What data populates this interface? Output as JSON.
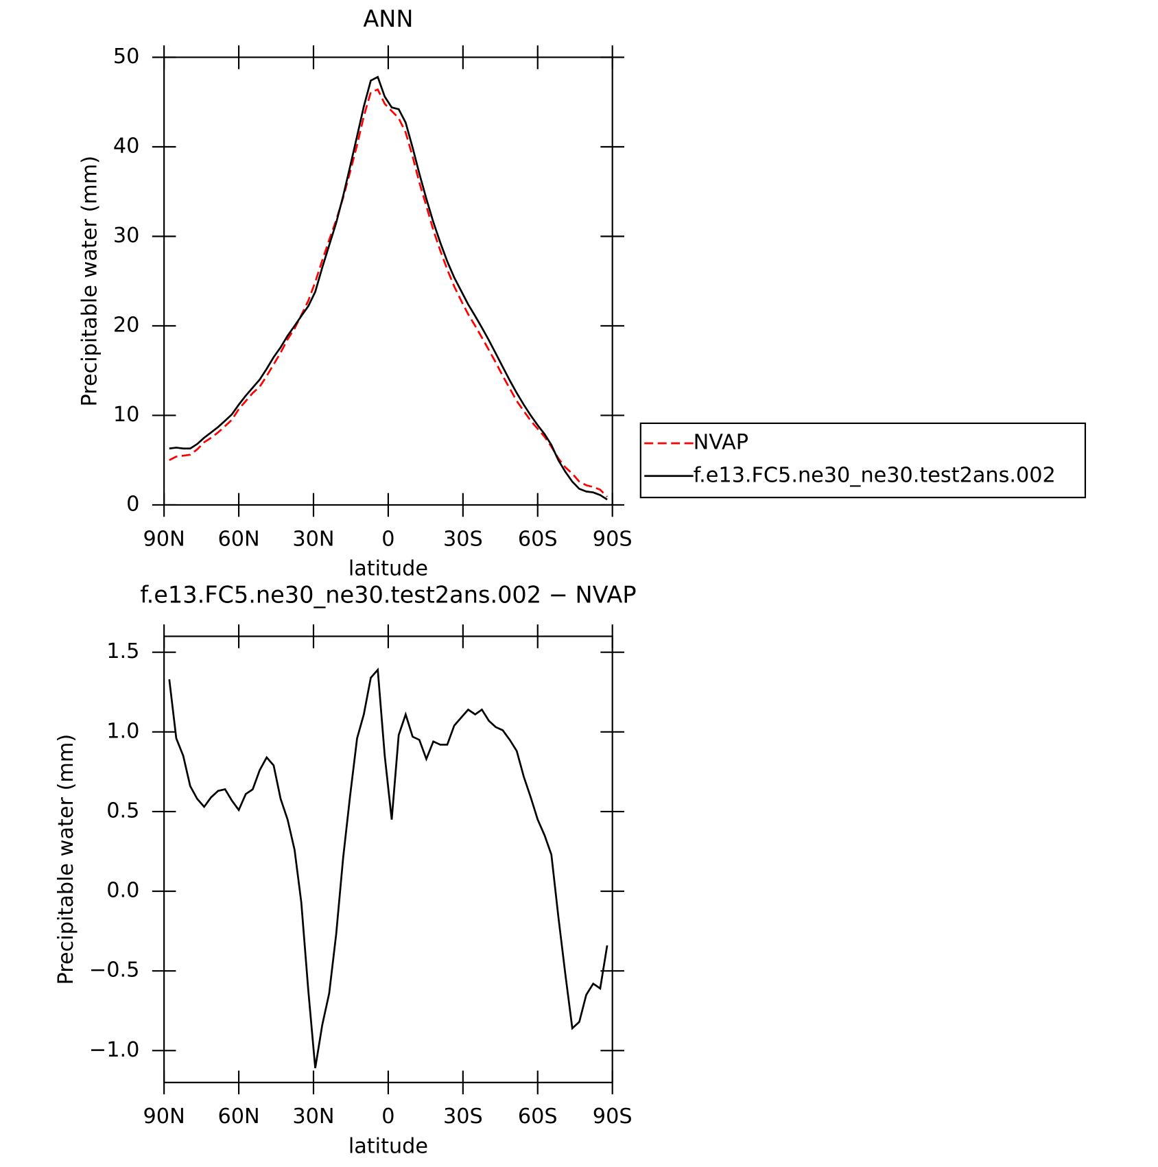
{
  "chart_data": [
    {
      "type": "line",
      "title": "ANN",
      "xlabel": "latitude",
      "ylabel": "Precipitable water (mm)",
      "x": [
        87.9,
        85.1,
        82.3,
        79.5,
        76.7,
        73.9,
        71.1,
        68.3,
        65.5,
        62.8,
        60.0,
        57.2,
        54.4,
        51.6,
        48.8,
        46.0,
        43.2,
        40.4,
        37.6,
        34.9,
        32.1,
        29.3,
        26.5,
        23.7,
        20.9,
        18.1,
        15.3,
        12.5,
        9.8,
        7.0,
        4.2,
        1.4,
        -1.4,
        -4.2,
        -7.0,
        -9.8,
        -12.5,
        -15.3,
        -18.1,
        -20.9,
        -23.7,
        -26.5,
        -29.3,
        -32.1,
        -34.9,
        -37.6,
        -40.4,
        -43.2,
        -46.0,
        -48.8,
        -51.6,
        -54.4,
        -57.2,
        -60.0,
        -62.8,
        -65.5,
        -68.3,
        -71.1,
        -73.9,
        -76.7,
        -79.5,
        -82.3,
        -85.1,
        -87.9
      ],
      "series": [
        {
          "name": "NVAP",
          "color": "#ff0000",
          "dashed": true,
          "values": [
            5.0,
            5.4,
            5.5,
            5.6,
            6.2,
            7.0,
            7.5,
            8.1,
            8.8,
            9.5,
            10.7,
            11.6,
            12.5,
            13.2,
            14.4,
            15.7,
            17.0,
            18.5,
            19.7,
            21.2,
            22.8,
            24.9,
            27.3,
            29.6,
            31.8,
            34.3,
            37.2,
            40.2,
            43.4,
            46.1,
            46.4,
            44.8,
            44.0,
            43.2,
            41.6,
            38.9,
            36.0,
            33.4,
            30.7,
            28.4,
            26.3,
            24.4,
            22.8,
            21.3,
            20.0,
            18.7,
            17.3,
            15.9,
            14.4,
            13.0,
            11.6,
            10.5,
            9.4,
            8.5,
            7.6,
            6.5,
            5.2,
            4.2,
            3.5,
            2.6,
            2.2,
            2.0,
            1.7,
            0.9
          ]
        },
        {
          "name": "f.e13.FC5.ne30_ne30.test2ans.002",
          "color": "#000000",
          "dashed": false,
          "values": [
            6.3,
            6.4,
            6.3,
            6.3,
            6.8,
            7.5,
            8.1,
            8.7,
            9.4,
            10.1,
            11.2,
            12.2,
            13.1,
            14.0,
            15.2,
            16.5,
            17.6,
            18.9,
            20.0,
            21.1,
            22.2,
            23.8,
            26.5,
            29.0,
            31.5,
            34.5,
            37.8,
            41.2,
            44.5,
            47.4,
            47.8,
            45.6,
            44.4,
            44.2,
            42.7,
            39.9,
            37.0,
            34.2,
            31.6,
            29.3,
            27.2,
            25.4,
            23.9,
            22.4,
            21.1,
            19.8,
            18.4,
            16.9,
            15.4,
            13.9,
            12.5,
            11.2,
            10.0,
            8.9,
            7.9,
            6.7,
            5.0,
            3.7,
            2.6,
            1.8,
            1.5,
            1.4,
            1.1,
            0.6
          ]
        }
      ],
      "xlim": [
        90,
        -90
      ],
      "xticks": [
        {
          "value": 90,
          "label": "90N"
        },
        {
          "value": 60,
          "label": "60N"
        },
        {
          "value": 30,
          "label": "30N"
        },
        0,
        {
          "value": -30,
          "label": "30S"
        },
        {
          "value": -60,
          "label": "60S"
        },
        {
          "value": -90,
          "label": "90S"
        }
      ],
      "ylim": [
        0,
        50
      ],
      "yticks": [
        0,
        10,
        20,
        30,
        40,
        50
      ],
      "legend": "right"
    },
    {
      "type": "line",
      "title": "f.e13.FC5.ne30_ne30.test2ans.002 − NVAP",
      "xlabel": "latitude",
      "ylabel": "Precipitable water (mm)",
      "x": [
        87.9,
        85.1,
        82.3,
        79.5,
        76.7,
        73.9,
        71.1,
        68.3,
        65.5,
        62.8,
        60.0,
        57.2,
        54.4,
        51.6,
        48.8,
        46.0,
        43.2,
        40.4,
        37.6,
        34.9,
        32.1,
        29.3,
        26.5,
        23.7,
        20.9,
        18.1,
        15.3,
        12.5,
        9.8,
        7.0,
        4.2,
        1.4,
        -1.4,
        -4.2,
        -7.0,
        -9.8,
        -12.5,
        -15.3,
        -18.1,
        -20.9,
        -23.7,
        -26.5,
        -29.3,
        -32.1,
        -34.9,
        -37.6,
        -40.4,
        -43.2,
        -46.0,
        -48.8,
        -51.6,
        -54.4,
        -57.2,
        -60.0,
        -62.8,
        -65.5,
        -68.3,
        -71.1,
        -73.9,
        -76.7,
        -79.5,
        -82.3,
        -85.1,
        -87.9
      ],
      "color": "#000000",
      "values": [
        1.33,
        0.96,
        0.85,
        0.66,
        0.58,
        0.53,
        0.59,
        0.63,
        0.64,
        0.57,
        0.51,
        0.61,
        0.64,
        0.76,
        0.84,
        0.79,
        0.58,
        0.45,
        0.26,
        -0.07,
        -0.62,
        -1.11,
        -0.84,
        -0.64,
        -0.27,
        0.21,
        0.6,
        0.96,
        1.11,
        1.34,
        1.39,
        0.85,
        0.45,
        0.98,
        1.11,
        0.97,
        0.95,
        0.83,
        0.94,
        0.92,
        0.92,
        1.04,
        1.09,
        1.14,
        1.11,
        1.14,
        1.07,
        1.03,
        1.01,
        0.95,
        0.88,
        0.72,
        0.59,
        0.45,
        0.35,
        0.23,
        -0.16,
        -0.52,
        -0.86,
        -0.82,
        -0.65,
        -0.58,
        -0.61,
        -0.34
      ],
      "xlim": [
        90,
        -90
      ],
      "xticks": [
        {
          "value": 90,
          "label": "90N"
        },
        {
          "value": 60,
          "label": "60N"
        },
        {
          "value": 30,
          "label": "30N"
        },
        0,
        {
          "value": -30,
          "label": "30S"
        },
        {
          "value": -60,
          "label": "60S"
        },
        {
          "value": -90,
          "label": "90S"
        }
      ],
      "ylim": [
        -1.2,
        1.6
      ],
      "yticks": [
        {
          "value": -1.0,
          "label": "−1.0"
        },
        {
          "value": -0.5,
          "label": "−0.5"
        },
        {
          "value": 0.0,
          "label": "0.0"
        },
        0.5,
        {
          "value": 1.0,
          "label": "1.0"
        },
        1.5
      ]
    }
  ]
}
